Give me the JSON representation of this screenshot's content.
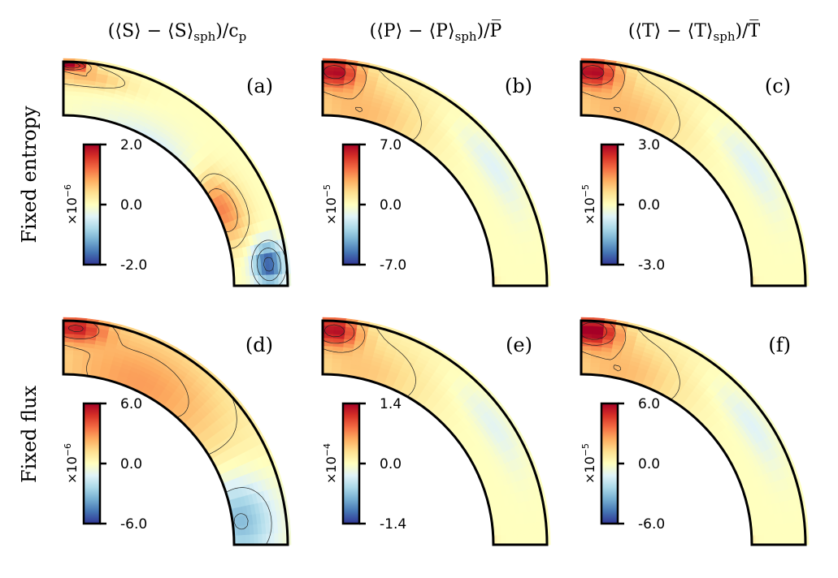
{
  "chart_data": {
    "type": "heatmap",
    "figure_kind": "quarter-shell meridional contour maps",
    "column_titles": [
      {
        "base": "(⟨S⟩ − ⟨S⟩",
        "sub": "sph",
        "tail": ")/c",
        "tail_sub": "p"
      },
      {
        "base": "(⟨P⟩ − ⟨P⟩",
        "sub": "sph",
        "tail": ")/P̅",
        "tail_sub": ""
      },
      {
        "base": "(⟨T⟩ − ⟨T⟩",
        "sub": "sph",
        "tail": ")/T̅",
        "tail_sub": ""
      }
    ],
    "row_labels": [
      "Fixed entropy",
      "Fixed flux"
    ],
    "colormap": [
      "#313695",
      "#4575b4",
      "#74add1",
      "#abd9e9",
      "#e0f3f8",
      "#ffffbf",
      "#fee090",
      "#fdae61",
      "#f46d43",
      "#d73027",
      "#a50026"
    ],
    "panels": [
      {
        "label": "(a)",
        "row": 0,
        "col": 0,
        "field": "entropy",
        "colorbar": {
          "scale_base": "×10",
          "exponent": "−6",
          "ticks": [
            "2.0",
            "0.0",
            "-2.0"
          ],
          "vmin": -2.0,
          "vmax": 2.0
        },
        "pattern": [
          {
            "r": 0.985,
            "th": 2,
            "v": 1.0,
            "sr": 0.02,
            "st": 4
          },
          {
            "r": 0.94,
            "th": 6,
            "v": 0.35,
            "sr": 0.05,
            "st": 12
          },
          {
            "r": 0.7,
            "th": 32,
            "v": -0.28,
            "sr": 0.12,
            "st": 22
          },
          {
            "r": 0.78,
            "th": 64,
            "v": 0.55,
            "sr": 0.1,
            "st": 12
          },
          {
            "r": 0.92,
            "th": 84,
            "v": -0.9,
            "sr": 0.07,
            "st": 6
          },
          {
            "r": 0.6,
            "th": 86,
            "v": -0.35,
            "sr": 0.05,
            "st": 8
          }
        ]
      },
      {
        "label": "(b)",
        "row": 0,
        "col": 1,
        "field": "pressure",
        "colorbar": {
          "scale_base": "×10",
          "exponent": "−5",
          "ticks": [
            "7.0",
            "0.0",
            "-7.0"
          ],
          "vmin": -7.0,
          "vmax": 7.0
        },
        "pattern": [
          {
            "r": 0.96,
            "th": 3,
            "v": 0.85,
            "sr": 0.07,
            "st": 7
          },
          {
            "r": 0.8,
            "th": 12,
            "v": 0.35,
            "sr": 0.18,
            "st": 22
          },
          {
            "r": 0.93,
            "th": 55,
            "v": -0.2,
            "sr": 0.06,
            "st": 14
          },
          {
            "r": 0.7,
            "th": 89,
            "v": 0.55,
            "sr": 0.05,
            "st": 3
          }
        ]
      },
      {
        "label": "(c)",
        "row": 0,
        "col": 2,
        "field": "temperature",
        "colorbar": {
          "scale_base": "×10",
          "exponent": "−5",
          "ticks": [
            "3.0",
            "0.0",
            "-3.0"
          ],
          "vmin": -3.0,
          "vmax": 3.0
        },
        "pattern": [
          {
            "r": 0.96,
            "th": 3,
            "v": 0.85,
            "sr": 0.07,
            "st": 7
          },
          {
            "r": 0.8,
            "th": 12,
            "v": 0.35,
            "sr": 0.18,
            "st": 22
          },
          {
            "r": 0.93,
            "th": 55,
            "v": -0.2,
            "sr": 0.06,
            "st": 14
          },
          {
            "r": 0.7,
            "th": 89,
            "v": 0.55,
            "sr": 0.05,
            "st": 3
          }
        ]
      },
      {
        "label": "(d)",
        "row": 1,
        "col": 0,
        "field": "entropy",
        "colorbar": {
          "scale_base": "×10",
          "exponent": "−6",
          "ticks": [
            "6.0",
            "0.0",
            "-6.0"
          ],
          "vmin": -6.0,
          "vmax": 6.0
        },
        "pattern": [
          {
            "r": 0.97,
            "th": 3,
            "v": 0.7,
            "sr": 0.06,
            "st": 8
          },
          {
            "r": 0.8,
            "th": 25,
            "v": 0.45,
            "sr": 0.25,
            "st": 35
          },
          {
            "r": 0.8,
            "th": 82,
            "v": -0.55,
            "sr": 0.16,
            "st": 14
          },
          {
            "r": 0.65,
            "th": 72,
            "v": -0.2,
            "sr": 0.06,
            "st": 14
          }
        ]
      },
      {
        "label": "(e)",
        "row": 1,
        "col": 1,
        "field": "pressure",
        "colorbar": {
          "scale_base": "×10",
          "exponent": "−4",
          "ticks": [
            "1.4",
            "0.0",
            "-1.4"
          ],
          "vmin": -1.4,
          "vmax": 1.4
        },
        "pattern": [
          {
            "r": 0.96,
            "th": 3,
            "v": 0.85,
            "sr": 0.07,
            "st": 7
          },
          {
            "r": 0.8,
            "th": 12,
            "v": 0.3,
            "sr": 0.18,
            "st": 22
          },
          {
            "r": 0.93,
            "th": 55,
            "v": -0.18,
            "sr": 0.06,
            "st": 14
          },
          {
            "r": 0.7,
            "th": 89,
            "v": 0.45,
            "sr": 0.05,
            "st": 3
          }
        ]
      },
      {
        "label": "(f)",
        "row": 1,
        "col": 2,
        "field": "temperature",
        "colorbar": {
          "scale_base": "×10",
          "exponent": "−5",
          "ticks": [
            "6.0",
            "0.0",
            "-6.0"
          ],
          "vmin": -6.0,
          "vmax": 6.0
        },
        "pattern": [
          {
            "r": 0.96,
            "th": 3,
            "v": 0.95,
            "sr": 0.07,
            "st": 7
          },
          {
            "r": 0.8,
            "th": 12,
            "v": 0.35,
            "sr": 0.18,
            "st": 22
          },
          {
            "r": 0.93,
            "th": 55,
            "v": -0.2,
            "sr": 0.06,
            "st": 14
          },
          {
            "r": 0.7,
            "th": 89,
            "v": 0.5,
            "sr": 0.05,
            "st": 3
          }
        ]
      }
    ]
  }
}
